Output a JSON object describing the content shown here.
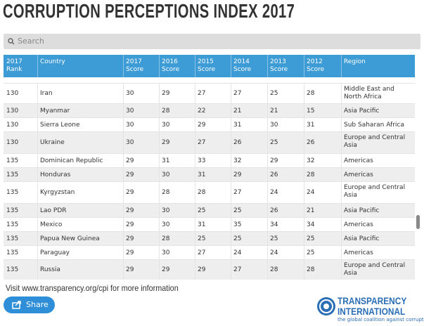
{
  "header": {
    "title": "CORRUPTION PERCEPTIONS INDEX 2017"
  },
  "search": {
    "placeholder": "Search"
  },
  "table": {
    "columns": [
      "2017 Rank",
      "Country",
      "2017 Score",
      "2016 Score",
      "2015 Score",
      "2014 Score",
      "2013 Score",
      "2012 Score",
      "Region"
    ],
    "rows": [
      [
        130,
        "Iran",
        30,
        29,
        27,
        27,
        25,
        28,
        "Middle East and North Africa"
      ],
      [
        130,
        "Myanmar",
        30,
        28,
        22,
        21,
        21,
        15,
        "Asia Pacific"
      ],
      [
        130,
        "Sierra Leone",
        30,
        30,
        29,
        31,
        30,
        31,
        "Sub Saharan Africa"
      ],
      [
        130,
        "Ukraine",
        30,
        29,
        27,
        26,
        25,
        26,
        "Europe and Central Asia"
      ],
      [
        135,
        "Dominican Republic",
        29,
        31,
        33,
        32,
        29,
        32,
        "Americas"
      ],
      [
        135,
        "Honduras",
        29,
        30,
        31,
        29,
        26,
        28,
        "Americas"
      ],
      [
        135,
        "Kyrgyzstan",
        29,
        28,
        28,
        27,
        24,
        24,
        "Europe and Central Asia"
      ],
      [
        135,
        "Lao PDR",
        29,
        30,
        25,
        25,
        26,
        21,
        "Asia Pacific"
      ],
      [
        135,
        "Mexico",
        29,
        30,
        31,
        35,
        34,
        34,
        "Americas"
      ],
      [
        135,
        "Papua New Guinea",
        29,
        28,
        25,
        25,
        25,
        25,
        "Asia Pacific"
      ],
      [
        135,
        "Paraguay",
        29,
        30,
        27,
        24,
        24,
        25,
        "Americas"
      ],
      [
        135,
        "Russia",
        29,
        29,
        29,
        27,
        28,
        28,
        "Europe and Central Asia"
      ]
    ]
  },
  "footer": {
    "info": "Visit www.transparency.org/cpi for more information",
    "share": "Share",
    "logo": {
      "name_1": "TRANSPARENCY",
      "name_2": "INTERNATIONAL",
      "tagline": "the global coalition against corruption"
    }
  }
}
